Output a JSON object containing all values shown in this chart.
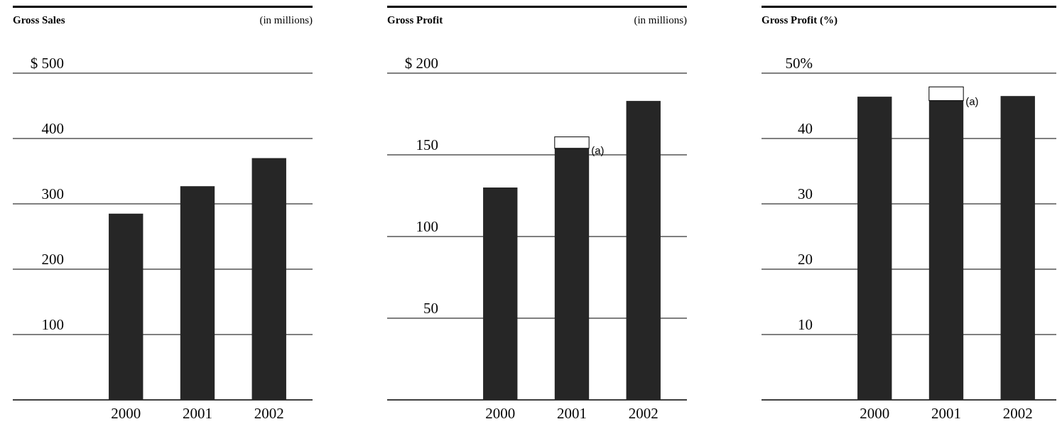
{
  "chart_data": [
    {
      "type": "bar",
      "title": "Gross Sales",
      "subtitle": "(in millions)",
      "categories": [
        "2000",
        "2001",
        "2002"
      ],
      "series": [
        {
          "color": "#262626",
          "values": [
            285,
            327,
            370
          ]
        }
      ],
      "ylim": [
        0,
        500
      ],
      "yticks": [
        {
          "value": 0,
          "label": null
        },
        100,
        200,
        300,
        400,
        {
          "value": 500,
          "label": "$ 500"
        }
      ],
      "grid": "y"
    },
    {
      "type": "bar",
      "title": "Gross Profit",
      "subtitle": "(in millions)",
      "categories": [
        "2000",
        "2001",
        "2002"
      ],
      "stacked": true,
      "series": [
        {
          "color": "#262626",
          "values": [
            130,
            154,
            183
          ]
        },
        {
          "color": "#ffffff",
          "values": [
            null,
            7,
            null
          ]
        }
      ],
      "ylim": [
        0,
        200
      ],
      "yticks": [
        {
          "value": 0,
          "label": null
        },
        50,
        100,
        150,
        {
          "value": 200,
          "label": "$ 200"
        }
      ],
      "grid": "y",
      "annotations": [
        {
          "text": "(a)",
          "x": "2001",
          "y": 152
        }
      ]
    },
    {
      "type": "bar",
      "title": "Gross Profit (%)",
      "categories": [
        "2000",
        "2001",
        "2002"
      ],
      "stacked": true,
      "series": [
        {
          "color": "#262626",
          "values": [
            46.4,
            45.8,
            46.5
          ]
        },
        {
          "color": "#ffffff",
          "values": [
            null,
            2.1,
            null
          ]
        }
      ],
      "ylim": [
        0,
        50
      ],
      "yticks": [
        {
          "value": 0,
          "label": null
        },
        10,
        20,
        30,
        40,
        {
          "value": 50,
          "label": "50%"
        }
      ],
      "grid": "y",
      "annotations": [
        {
          "text": "(a)",
          "x": "2001",
          "y": 45.5
        }
      ]
    }
  ]
}
